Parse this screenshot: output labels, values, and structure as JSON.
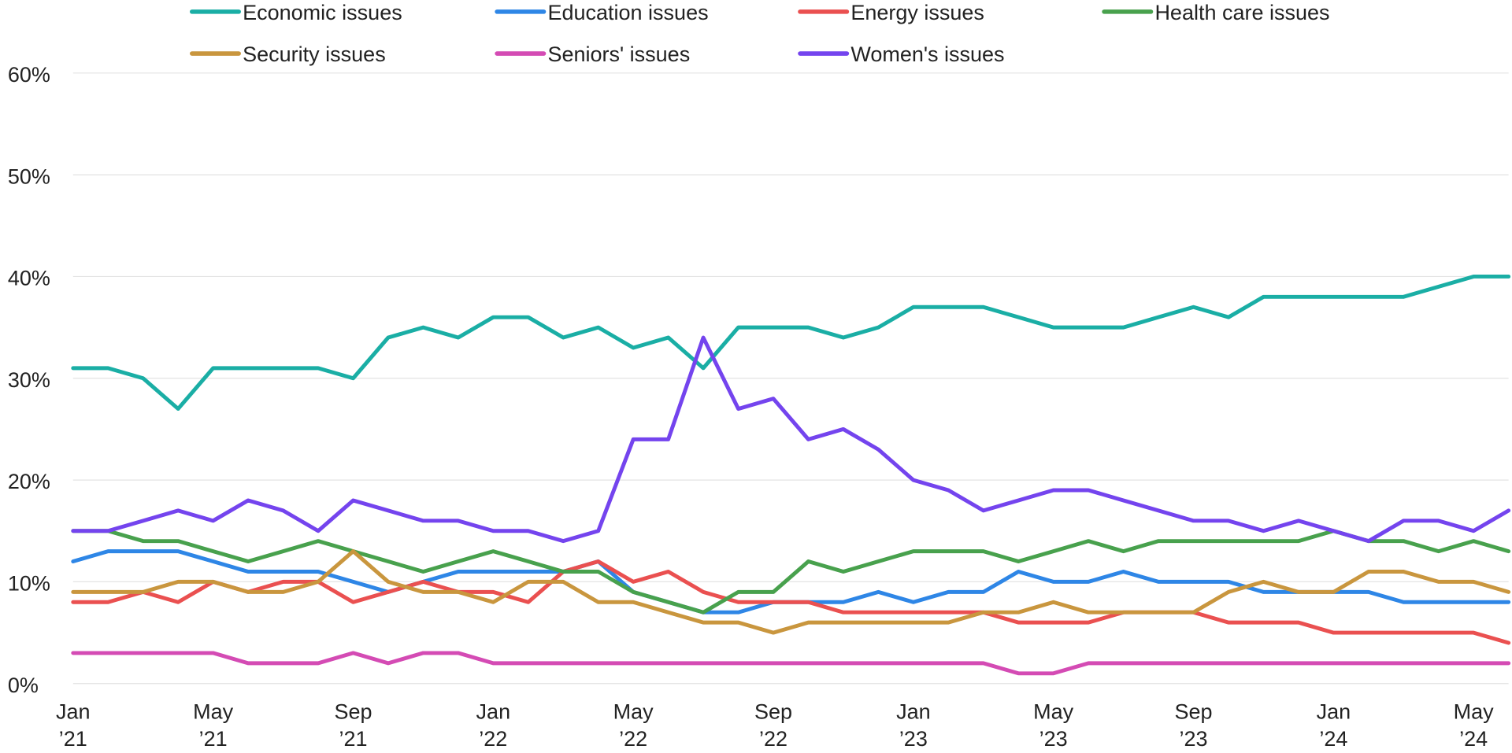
{
  "chart_data": {
    "type": "line",
    "title": "",
    "xlabel": "",
    "ylabel": "",
    "ylim": [
      0,
      60
    ],
    "yticks": [
      0,
      10,
      20,
      30,
      40,
      50,
      60
    ],
    "ytick_labels": [
      "0%",
      "10%",
      "20%",
      "30%",
      "40%",
      "50%",
      "60%"
    ],
    "grid": true,
    "legend_position": "top",
    "x": [
      "2021-01",
      "2021-02",
      "2021-03",
      "2021-04",
      "2021-05",
      "2021-06",
      "2021-07",
      "2021-08",
      "2021-09",
      "2021-10",
      "2021-11",
      "2021-12",
      "2022-01",
      "2022-02",
      "2022-03",
      "2022-04",
      "2022-05",
      "2022-06",
      "2022-07",
      "2022-08",
      "2022-09",
      "2022-10",
      "2022-11",
      "2022-12",
      "2023-01",
      "2023-02",
      "2023-03",
      "2023-04",
      "2023-05",
      "2023-06",
      "2023-07",
      "2023-08",
      "2023-09",
      "2023-10",
      "2023-11",
      "2023-12",
      "2024-01",
      "2024-02",
      "2024-03",
      "2024-04",
      "2024-05",
      "2024-06"
    ],
    "xticks": [
      {
        "month": "Jan",
        "year": "’21"
      },
      {
        "month": "May",
        "year": "’21"
      },
      {
        "month": "Sep",
        "year": "’21"
      },
      {
        "month": "Jan",
        "year": "’22"
      },
      {
        "month": "May",
        "year": "’22"
      },
      {
        "month": "Sep",
        "year": "’22"
      },
      {
        "month": "Jan",
        "year": "’23"
      },
      {
        "month": "May",
        "year": "’23"
      },
      {
        "month": "Sep",
        "year": "’23"
      },
      {
        "month": "Jan",
        "year": "’24"
      },
      {
        "month": "May",
        "year": "’24"
      }
    ],
    "series": [
      {
        "name": "Economic issues",
        "color": "#1aaea5",
        "values": [
          31,
          31,
          30,
          27,
          31,
          31,
          31,
          31,
          30,
          34,
          35,
          34,
          36,
          36,
          34,
          35,
          33,
          34,
          31,
          35,
          35,
          35,
          34,
          35,
          37,
          37,
          37,
          36,
          35,
          35,
          35,
          36,
          37,
          36,
          38,
          38,
          38,
          38,
          38,
          39,
          40,
          40
        ]
      },
      {
        "name": "Education issues",
        "color": "#2e86e6",
        "values": [
          12,
          13,
          13,
          13,
          12,
          11,
          11,
          11,
          10,
          9,
          10,
          11,
          11,
          11,
          11,
          12,
          9,
          8,
          7,
          7,
          8,
          8,
          8,
          9,
          8,
          9,
          9,
          11,
          10,
          10,
          11,
          10,
          10,
          10,
          9,
          9,
          9,
          9,
          8,
          8,
          8,
          8
        ]
      },
      {
        "name": "Energy issues",
        "color": "#ea5050",
        "values": [
          8,
          8,
          9,
          8,
          10,
          9,
          10,
          10,
          8,
          9,
          10,
          9,
          9,
          8,
          11,
          12,
          10,
          11,
          9,
          8,
          8,
          8,
          7,
          7,
          7,
          7,
          7,
          6,
          6,
          6,
          7,
          7,
          7,
          6,
          6,
          6,
          5,
          5,
          5,
          5,
          5,
          4
        ]
      },
      {
        "name": "Health care issues",
        "color": "#48a14d",
        "values": [
          15,
          15,
          14,
          14,
          13,
          12,
          13,
          14,
          13,
          12,
          11,
          12,
          13,
          12,
          11,
          11,
          9,
          8,
          7,
          9,
          9,
          12,
          11,
          12,
          13,
          13,
          13,
          12,
          13,
          14,
          13,
          14,
          14,
          14,
          14,
          14,
          15,
          14,
          14,
          13,
          14,
          13
        ]
      },
      {
        "name": "Security issues",
        "color": "#c9963e",
        "values": [
          9,
          9,
          9,
          10,
          10,
          9,
          9,
          10,
          13,
          10,
          9,
          9,
          8,
          10,
          10,
          8,
          8,
          7,
          6,
          6,
          5,
          6,
          6,
          6,
          6,
          6,
          7,
          7,
          8,
          7,
          7,
          7,
          7,
          9,
          10,
          9,
          9,
          11,
          11,
          10,
          10,
          9
        ]
      },
      {
        "name": "Seniors' issues",
        "color": "#d44bb4",
        "values": [
          3,
          3,
          3,
          3,
          3,
          2,
          2,
          2,
          3,
          2,
          3,
          3,
          2,
          2,
          2,
          2,
          2,
          2,
          2,
          2,
          2,
          2,
          2,
          2,
          2,
          2,
          2,
          1,
          1,
          2,
          2,
          2,
          2,
          2,
          2,
          2,
          2,
          2,
          2,
          2,
          2,
          2
        ]
      },
      {
        "name": "Women's issues",
        "color": "#7444ee",
        "values": [
          15,
          15,
          16,
          17,
          16,
          18,
          17,
          15,
          18,
          17,
          16,
          16,
          15,
          15,
          14,
          15,
          24,
          24,
          34,
          27,
          28,
          24,
          25,
          23,
          20,
          19,
          17,
          18,
          19,
          19,
          18,
          17,
          16,
          16,
          15,
          16,
          15,
          14,
          16,
          16,
          15,
          17
        ]
      }
    ]
  }
}
